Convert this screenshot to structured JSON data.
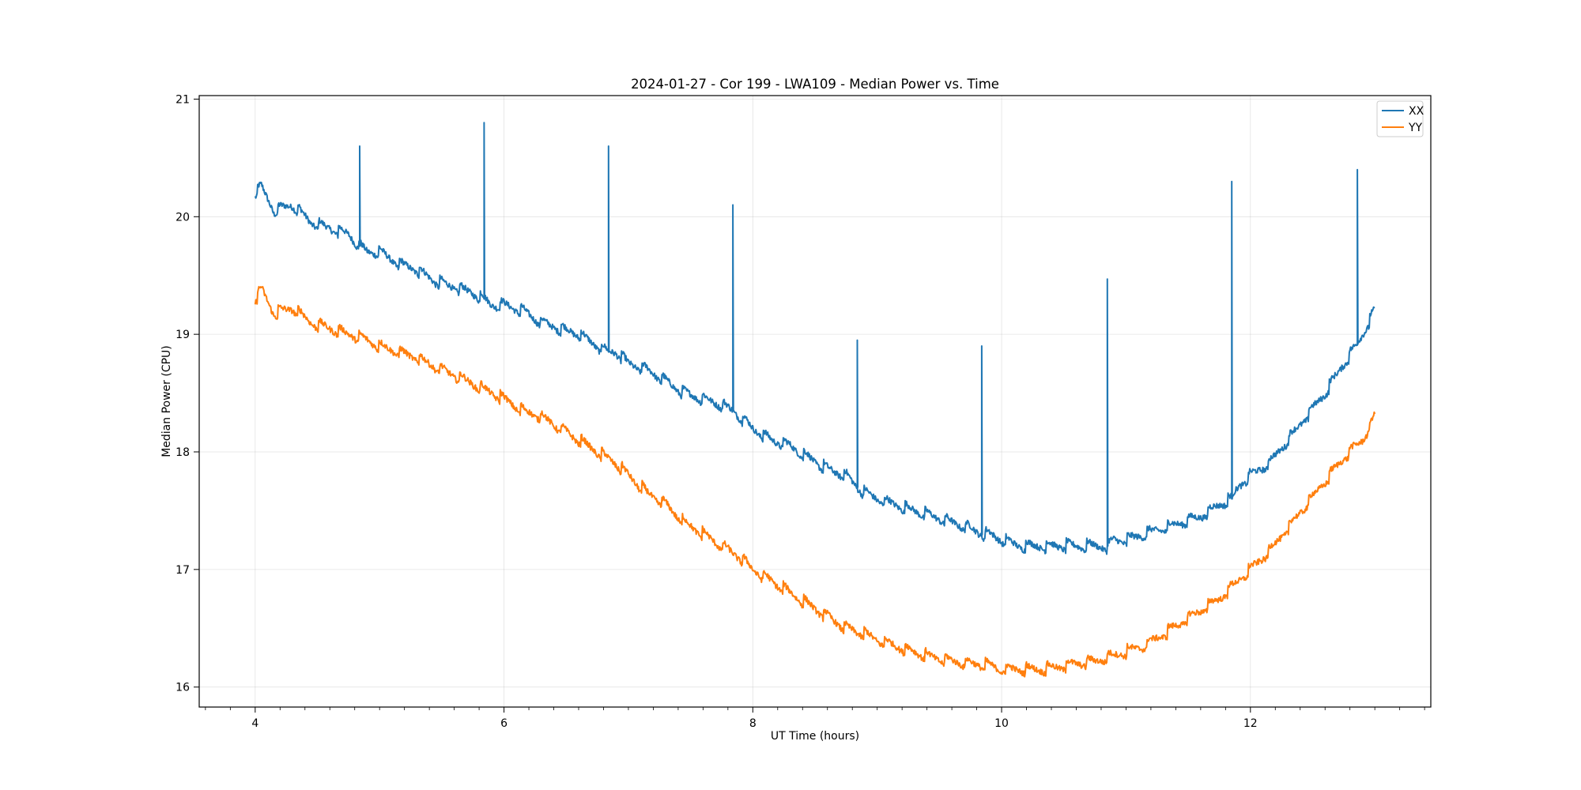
{
  "chart_data": {
    "type": "line",
    "title": "2024-01-27 - Cor 199 - LWA109 - Median Power vs. Time",
    "xlabel": "UT Time (hours)",
    "ylabel": "Median Power (CPU)",
    "xlim": [
      3.55,
      13.45
    ],
    "ylim": [
      15.83,
      21.03
    ],
    "xticks": [
      4,
      6,
      8,
      10,
      12
    ],
    "xtick_labels": [
      "4",
      "6",
      "8",
      "10",
      "12"
    ],
    "yticks": [
      16,
      17,
      18,
      19,
      20,
      21
    ],
    "ytick_labels": [
      "16",
      "17",
      "18",
      "19",
      "20",
      "21"
    ],
    "grid": true,
    "legend_position": "top-right",
    "series": [
      {
        "name": "XX",
        "color": "#1f77b4",
        "x": [
          4.0,
          4.05,
          4.15,
          4.3,
          4.45,
          4.6,
          4.75,
          4.84,
          4.9,
          5.0,
          5.15,
          5.3,
          5.45,
          5.6,
          5.75,
          5.84,
          5.9,
          6.0,
          6.15,
          6.3,
          6.45,
          6.6,
          6.75,
          6.84,
          6.9,
          7.0,
          7.15,
          7.3,
          7.45,
          7.6,
          7.75,
          7.84,
          7.9,
          8.0,
          8.15,
          8.3,
          8.45,
          8.6,
          8.75,
          8.84,
          8.9,
          9.0,
          9.15,
          9.3,
          9.45,
          9.6,
          9.75,
          9.84,
          9.9,
          10.0,
          10.15,
          10.3,
          10.45,
          10.6,
          10.75,
          10.85,
          10.9,
          11.0,
          11.15,
          11.3,
          11.45,
          11.6,
          11.75,
          11.85,
          11.9,
          12.0,
          12.15,
          12.3,
          12.45,
          12.6,
          12.75,
          12.85,
          12.9,
          13.0
        ],
        "y": [
          20.2,
          20.25,
          20.05,
          20.1,
          19.95,
          19.9,
          19.85,
          19.75,
          19.7,
          19.7,
          19.6,
          19.55,
          19.45,
          19.4,
          19.35,
          19.3,
          19.25,
          19.25,
          19.2,
          19.1,
          19.05,
          19.0,
          18.9,
          18.85,
          18.85,
          18.75,
          18.7,
          18.6,
          18.5,
          18.45,
          18.4,
          18.35,
          18.3,
          18.2,
          18.1,
          18.05,
          17.95,
          17.85,
          17.8,
          17.7,
          17.65,
          17.6,
          17.55,
          17.5,
          17.45,
          17.4,
          17.35,
          17.3,
          17.3,
          17.25,
          17.2,
          17.2,
          17.2,
          17.2,
          17.2,
          17.2,
          17.25,
          17.25,
          17.3,
          17.35,
          17.4,
          17.45,
          17.55,
          17.6,
          17.7,
          17.8,
          17.9,
          18.1,
          18.3,
          18.5,
          18.75,
          18.9,
          19.0,
          19.2
        ],
        "spikes": [
          [
            4.84,
            20.6
          ],
          [
            5.84,
            20.8
          ],
          [
            6.84,
            20.6
          ],
          [
            7.84,
            20.1
          ],
          [
            8.84,
            18.95
          ],
          [
            9.84,
            18.9
          ],
          [
            10.85,
            19.47
          ],
          [
            11.85,
            20.3
          ],
          [
            12.86,
            20.4
          ]
        ]
      },
      {
        "name": "YY",
        "color": "#ff7f0e",
        "x": [
          4.0,
          4.05,
          4.15,
          4.3,
          4.45,
          4.6,
          4.75,
          4.9,
          5.0,
          5.15,
          5.3,
          5.45,
          5.6,
          5.75,
          5.9,
          6.0,
          6.15,
          6.3,
          6.45,
          6.6,
          6.75,
          6.9,
          7.0,
          7.15,
          7.3,
          7.45,
          7.6,
          7.75,
          7.9,
          8.0,
          8.15,
          8.3,
          8.45,
          8.6,
          8.75,
          8.9,
          9.0,
          9.15,
          9.3,
          9.45,
          9.6,
          9.75,
          9.9,
          10.0,
          10.15,
          10.3,
          10.45,
          10.6,
          10.75,
          10.9,
          11.0,
          11.15,
          11.3,
          11.45,
          11.6,
          11.75,
          11.9,
          12.0,
          12.15,
          12.3,
          12.45,
          12.6,
          12.75,
          12.85,
          12.9,
          13.0
        ],
        "y": [
          19.3,
          19.38,
          19.18,
          19.22,
          19.1,
          19.05,
          19.0,
          18.95,
          18.9,
          18.85,
          18.8,
          18.72,
          18.65,
          18.58,
          18.5,
          18.45,
          18.35,
          18.3,
          18.2,
          18.1,
          18.0,
          17.9,
          17.8,
          17.65,
          17.55,
          17.4,
          17.3,
          17.2,
          17.1,
          17.0,
          16.9,
          16.8,
          16.7,
          16.6,
          16.5,
          16.45,
          16.4,
          16.35,
          16.3,
          16.25,
          16.22,
          16.2,
          16.18,
          16.15,
          16.15,
          16.15,
          16.17,
          16.2,
          16.22,
          16.27,
          16.3,
          16.35,
          16.45,
          16.55,
          16.65,
          16.75,
          16.9,
          17.0,
          17.15,
          17.35,
          17.55,
          17.75,
          17.95,
          18.05,
          18.1,
          18.3
        ],
        "spikes": []
      }
    ]
  }
}
